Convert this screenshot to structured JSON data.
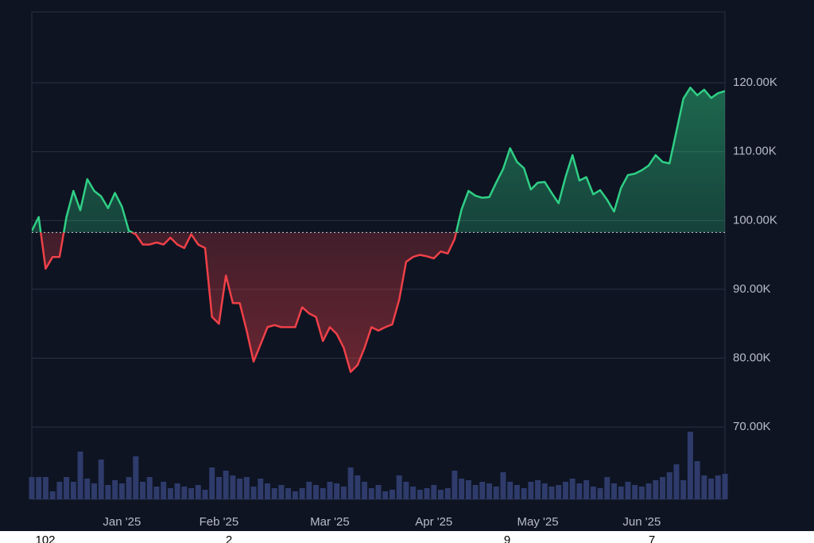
{
  "chart_data": {
    "type": "baseline",
    "categories": [
      null,
      null,
      null,
      null,
      null,
      null,
      null,
      null,
      null,
      null,
      null,
      null,
      null,
      "Jan '25",
      null,
      null,
      null,
      null,
      null,
      null,
      null,
      null,
      null,
      null,
      null,
      null,
      null,
      "Feb '25",
      null,
      null,
      null,
      null,
      null,
      null,
      null,
      null,
      null,
      null,
      null,
      null,
      null,
      null,
      null,
      "Mar '25",
      null,
      null,
      null,
      null,
      null,
      null,
      null,
      null,
      null,
      null,
      null,
      null,
      null,
      null,
      "Apr '25",
      null,
      null,
      null,
      null,
      null,
      null,
      null,
      null,
      null,
      null,
      null,
      null,
      null,
      null,
      "May '25",
      null,
      null,
      null,
      null,
      null,
      null,
      null,
      null,
      null,
      null,
      null,
      null,
      null,
      null,
      "Jun '25",
      null,
      null,
      null,
      null,
      null,
      null,
      null,
      null,
      null,
      null,
      null,
      null
    ],
    "values": [
      98500,
      100500,
      93000,
      94700,
      94700,
      100500,
      104300,
      101500,
      106000,
      104300,
      103500,
      101800,
      104000,
      102000,
      98500,
      98000,
      96500,
      96500,
      96800,
      96500,
      97500,
      96500,
      96000,
      98000,
      96500,
      96000,
      86000,
      85000,
      92000,
      88000,
      88000,
      84000,
      79500,
      82000,
      84500,
      84800,
      84500,
      84500,
      84500,
      87400,
      86500,
      86000,
      82500,
      84500,
      83500,
      81500,
      78000,
      79000,
      81500,
      84500,
      84000,
      84500,
      84900,
      88500,
      94000,
      94700,
      95000,
      94800,
      94500,
      95500,
      95200,
      97300,
      101600,
      104300,
      103600,
      103300,
      103400,
      105500,
      107500,
      110500,
      108500,
      107600,
      104500,
      105500,
      105600,
      104000,
      102500,
      106300,
      109500,
      105800,
      106300,
      103800,
      104400,
      103000,
      101300,
      104700,
      106600,
      106800,
      107300,
      108000,
      109500,
      108500,
      108300,
      113000,
      117700,
      119300,
      118200,
      119000,
      117800,
      118500,
      118800
    ],
    "volume": [
      28,
      28,
      28,
      10,
      22,
      28,
      22,
      60,
      26,
      20,
      50,
      18,
      24,
      20,
      28,
      54,
      22,
      28,
      16,
      22,
      14,
      20,
      16,
      14,
      18,
      12,
      40,
      28,
      36,
      30,
      26,
      28,
      16,
      26,
      20,
      14,
      18,
      14,
      10,
      14,
      22,
      18,
      14,
      22,
      20,
      16,
      40,
      30,
      22,
      14,
      18,
      10,
      12,
      30,
      22,
      16,
      12,
      14,
      18,
      12,
      14,
      36,
      26,
      24,
      18,
      22,
      20,
      16,
      34,
      22,
      18,
      14,
      22,
      24,
      20,
      16,
      18,
      22,
      26,
      20,
      24,
      16,
      14,
      28,
      20,
      16,
      22,
      18,
      16,
      20,
      24,
      28,
      34,
      44,
      24,
      85,
      48,
      30,
      26,
      30,
      32
    ],
    "volume_lim": [
      0,
      100
    ],
    "baseline": 98270,
    "ylim": [
      59500,
      130300
    ],
    "yticks": [
      {
        "value": 70000,
        "label": "70.00K"
      },
      {
        "value": 80000,
        "label": "80.00K"
      },
      {
        "value": 90000,
        "label": "90.00K"
      },
      {
        "value": 100000,
        "label": "100.00K"
      },
      {
        "value": 110000,
        "label": "110.00K"
      },
      {
        "value": 120000,
        "label": "120.00K"
      }
    ],
    "grid": true,
    "up_color": "#2fcf85",
    "down_color": "#ef4048",
    "volume_color": "#2e3b6b",
    "footer_labels": [
      "102",
      "2",
      "9",
      "7"
    ]
  }
}
